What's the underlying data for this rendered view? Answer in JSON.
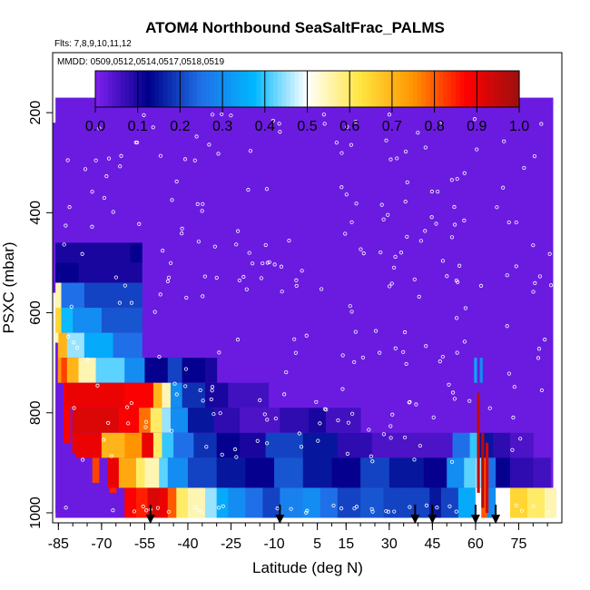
{
  "chart_data": {
    "type": "heatmap",
    "title": "ATOM4 Northbound SeaSaltFrac_PALMS",
    "flights_note": "Flts: 7,8,9,10,11,12",
    "dates_note": "MMDD: 0509,0512,0514,0517,0518,0519",
    "xlabel": "Latitude (deg N)",
    "ylabel": "PSXC (mbar)",
    "xlim": [
      -87,
      90
    ],
    "ylim": [
      1020,
      80
    ],
    "x_ticks": [
      "-85",
      "-70",
      "-55",
      "-40",
      "-25",
      "-10",
      "5",
      "15",
      "30",
      "45",
      "60",
      "75"
    ],
    "y_ticks": [
      "200",
      "400",
      "600",
      "800",
      "1000"
    ],
    "colorbar": {
      "ticks": [
        "0.0",
        "0.1",
        "0.2",
        "0.3",
        "0.4",
        "0.5",
        "0.6",
        "0.7",
        "0.8",
        "0.9",
        "1.0"
      ],
      "range": [
        0,
        1
      ],
      "stops": [
        "#7f20f0",
        "#00008a",
        "#1f70e8",
        "#00b8ff",
        "#ffffff",
        "#ffe640",
        "#ff9400",
        "#ff0000",
        "#9c1010"
      ]
    },
    "background_value": 0.02,
    "columns": [
      {
        "lat": -86,
        "p": [
          220,
          560
        ],
        "v": 0.02
      },
      {
        "lat": -85,
        "p": [
          560,
          660
        ],
        "v": 0.55
      },
      {
        "lat": -84,
        "p": [
          660,
          740
        ],
        "v": 0.75
      },
      {
        "lat": -82,
        "p": [
          740,
          860
        ],
        "v": 0.88
      },
      {
        "lat": -79,
        "p": [
          800,
          880
        ],
        "v": 0.9
      },
      {
        "lat": -72,
        "p": [
          880,
          940
        ],
        "v": 0.82
      },
      {
        "lat": -66,
        "p": [
          940,
          960
        ],
        "v": 0.85
      }
    ],
    "layers": [
      {
        "p": [
          460,
          500
        ],
        "segments": [
          [
            -86,
            -60,
            0.1
          ],
          [
            -60,
            -56,
            0.12
          ]
        ]
      },
      {
        "p": [
          500,
          540
        ],
        "segments": [
          [
            -86,
            -78,
            0.12
          ],
          [
            -78,
            -56,
            0.1
          ]
        ]
      },
      {
        "p": [
          540,
          590
        ],
        "segments": [
          [
            -86,
            -84,
            0.55
          ],
          [
            -84,
            -76,
            0.25
          ],
          [
            -76,
            -56,
            0.2
          ]
        ]
      },
      {
        "p": [
          590,
          640
        ],
        "segments": [
          [
            -86,
            -84,
            0.65
          ],
          [
            -84,
            -80,
            0.38
          ],
          [
            -80,
            -70,
            0.3
          ],
          [
            -70,
            -56,
            0.22
          ]
        ]
      },
      {
        "p": [
          640,
          690
        ],
        "segments": [
          [
            -85,
            -82,
            0.7
          ],
          [
            -82,
            -76,
            0.45
          ],
          [
            -76,
            -66,
            0.35
          ],
          [
            -66,
            -56,
            0.25
          ]
        ]
      },
      {
        "p": [
          690,
          740
        ],
        "segments": [
          [
            -84,
            -82,
            0.82
          ],
          [
            -82,
            -78,
            0.7
          ],
          [
            -78,
            -72,
            0.55
          ],
          [
            -72,
            -62,
            0.42
          ],
          [
            -62,
            -55,
            0.3
          ],
          [
            -55,
            -47,
            0.12
          ],
          [
            -47,
            -42,
            0.2
          ],
          [
            -42,
            -34,
            0.12
          ],
          [
            -34,
            -30,
            0.1
          ]
        ]
      },
      {
        "p": [
          740,
          790
        ],
        "segments": [
          [
            -83,
            -62,
            0.9
          ],
          [
            -62,
            -52,
            0.88
          ],
          [
            -52,
            -49,
            0.7
          ],
          [
            -49,
            -46,
            0.55
          ],
          [
            -46,
            -42,
            0.3
          ],
          [
            -42,
            -34,
            0.18
          ],
          [
            -34,
            -26,
            0.1
          ],
          [
            -26,
            -12,
            0.06
          ]
        ]
      },
      {
        "p": [
          790,
          840
        ],
        "segments": [
          [
            -80,
            -64,
            0.92
          ],
          [
            -64,
            -57,
            0.88
          ],
          [
            -57,
            -53,
            0.78
          ],
          [
            -53,
            -49,
            0.6
          ],
          [
            -49,
            -46,
            0.45
          ],
          [
            -46,
            -40,
            0.3
          ],
          [
            -40,
            -31,
            0.15
          ],
          [
            -31,
            -22,
            0.08
          ],
          [
            -22,
            -8,
            0.05
          ],
          [
            -8,
            2,
            0.08
          ],
          [
            2,
            8,
            0.1
          ],
          [
            8,
            20,
            0.06
          ]
        ]
      },
      {
        "p": [
          840,
          890
        ],
        "segments": [
          [
            -79,
            -70,
            0.9
          ],
          [
            -70,
            -62,
            0.7
          ],
          [
            -62,
            -56,
            0.75
          ],
          [
            -56,
            -52,
            0.9
          ],
          [
            -52,
            -49,
            0.6
          ],
          [
            -49,
            -45,
            0.4
          ],
          [
            -45,
            -38,
            0.25
          ],
          [
            -38,
            -30,
            0.18
          ],
          [
            -30,
            -22,
            0.12
          ],
          [
            -22,
            -13,
            0.1
          ],
          [
            -13,
            0,
            0.2
          ],
          [
            0,
            12,
            0.15
          ],
          [
            12,
            24,
            0.08
          ],
          [
            24,
            52,
            0.05
          ],
          [
            52,
            58,
            0.25
          ],
          [
            58,
            61,
            0.4
          ],
          [
            61,
            66,
            0.15
          ],
          [
            66,
            72,
            0.08
          ],
          [
            72,
            80,
            0.05
          ]
        ]
      },
      {
        "p": [
          890,
          950
        ],
        "segments": [
          [
            -68,
            -64,
            0.9
          ],
          [
            -64,
            -58,
            0.72
          ],
          [
            -58,
            -55,
            0.6
          ],
          [
            -55,
            -50,
            0.55
          ],
          [
            -50,
            -47,
            0.42
          ],
          [
            -47,
            -40,
            0.3
          ],
          [
            -40,
            -30,
            0.2
          ],
          [
            -30,
            -20,
            0.15
          ],
          [
            -20,
            -10,
            0.12
          ],
          [
            -10,
            0,
            0.22
          ],
          [
            0,
            10,
            0.15
          ],
          [
            10,
            20,
            0.12
          ],
          [
            20,
            30,
            0.2
          ],
          [
            30,
            42,
            0.15
          ],
          [
            42,
            50,
            0.12
          ],
          [
            50,
            56,
            0.3
          ],
          [
            56,
            60,
            0.42
          ],
          [
            60,
            62,
            0.45
          ],
          [
            62,
            64,
            0.8
          ],
          [
            64,
            67,
            0.25
          ],
          [
            67,
            72,
            0.12
          ],
          [
            72,
            80,
            0.08
          ],
          [
            80,
            86,
            0.06
          ]
        ]
      },
      {
        "p": [
          950,
          1010
        ],
        "segments": [
          [
            -62,
            -58,
            0.88
          ],
          [
            -58,
            -54,
            0.85
          ],
          [
            -54,
            -50,
            0.92
          ],
          [
            -50,
            -47,
            0.9
          ],
          [
            -47,
            -44,
            0.8
          ],
          [
            -44,
            -40,
            0.6
          ],
          [
            -40,
            -34,
            0.55
          ],
          [
            -34,
            -30,
            0.45
          ],
          [
            -30,
            -26,
            0.35
          ],
          [
            -26,
            -20,
            0.3
          ],
          [
            -20,
            -14,
            0.25
          ],
          [
            -14,
            -8,
            0.2
          ],
          [
            -8,
            0,
            0.28
          ],
          [
            0,
            6,
            0.3
          ],
          [
            6,
            12,
            0.25
          ],
          [
            12,
            20,
            0.2
          ],
          [
            20,
            28,
            0.22
          ],
          [
            28,
            36,
            0.2
          ],
          [
            36,
            44,
            0.2
          ],
          [
            44,
            48,
            0.15
          ],
          [
            48,
            54,
            0.2
          ],
          [
            54,
            60,
            0.35
          ],
          [
            60,
            62,
            0.5
          ],
          [
            62,
            64,
            0.8
          ],
          [
            64,
            67,
            0.3
          ],
          [
            67,
            72,
            0.5
          ],
          [
            72,
            78,
            0.65
          ],
          [
            78,
            84,
            0.6
          ],
          [
            84,
            88,
            0.55
          ]
        ]
      }
    ],
    "strips": [
      {
        "lat": 61,
        "p": [
          760,
          960
        ],
        "v": 0.95
      },
      {
        "lat": 62.5,
        "p": [
          840,
          990
        ],
        "v": 0.97
      },
      {
        "lat": 64,
        "p": [
          860,
          1000
        ],
        "v": 0.92
      },
      {
        "lat": 60,
        "p": [
          690,
          740
        ],
        "v": 0.35
      },
      {
        "lat": 62,
        "p": [
          690,
          740
        ],
        "v": 0.3
      }
    ],
    "arrows_lat": [
      -53,
      -8,
      39,
      45,
      60,
      67
    ],
    "marker_color": "#ffffff"
  }
}
